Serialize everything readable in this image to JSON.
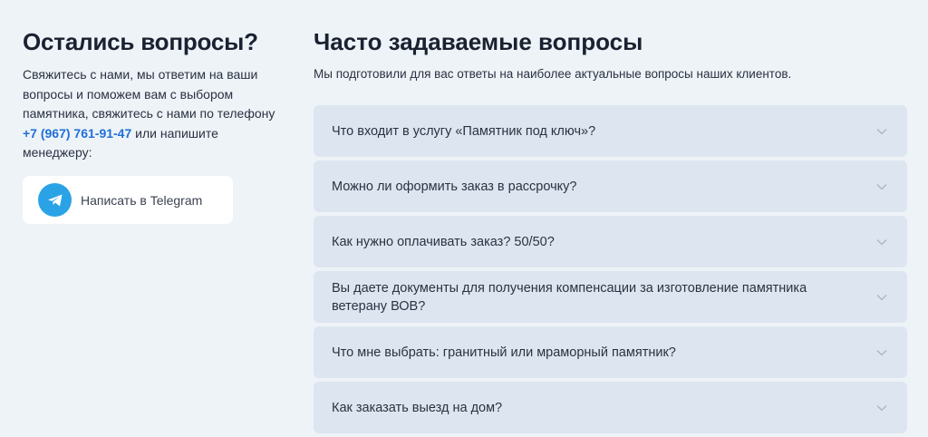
{
  "contact": {
    "title": "Остались вопросы?",
    "text_before": "Свяжитесь с нами, мы ответим на ваши вопросы и поможем вам с выбором памятника, свяжитесь с нами по телефону ",
    "phone": "+7 (967) 761-91-47",
    "text_after": " или напишите менеджеру:",
    "telegram_button": "Написать в Telegram",
    "telegram_color": "#2aa3e6"
  },
  "faq": {
    "title": "Часто задаваемые вопросы",
    "subtitle": "Мы подготовили для вас ответы на наиболее актуальные вопросы наших клиентов.",
    "items": [
      {
        "question": "Что входит в услугу «Памятник под ключ»?"
      },
      {
        "question": "Можно ли оформить заказ в рассрочку?"
      },
      {
        "question": "Как нужно оплачивать заказ? 50/50?"
      },
      {
        "question": "Вы даете документы для получения компенсации за изготовление памятника ветерану ВОВ?"
      },
      {
        "question": "Что мне выбрать: гранитный или мраморный памятник?"
      },
      {
        "question": "Как заказать выезд на дом?"
      }
    ]
  }
}
